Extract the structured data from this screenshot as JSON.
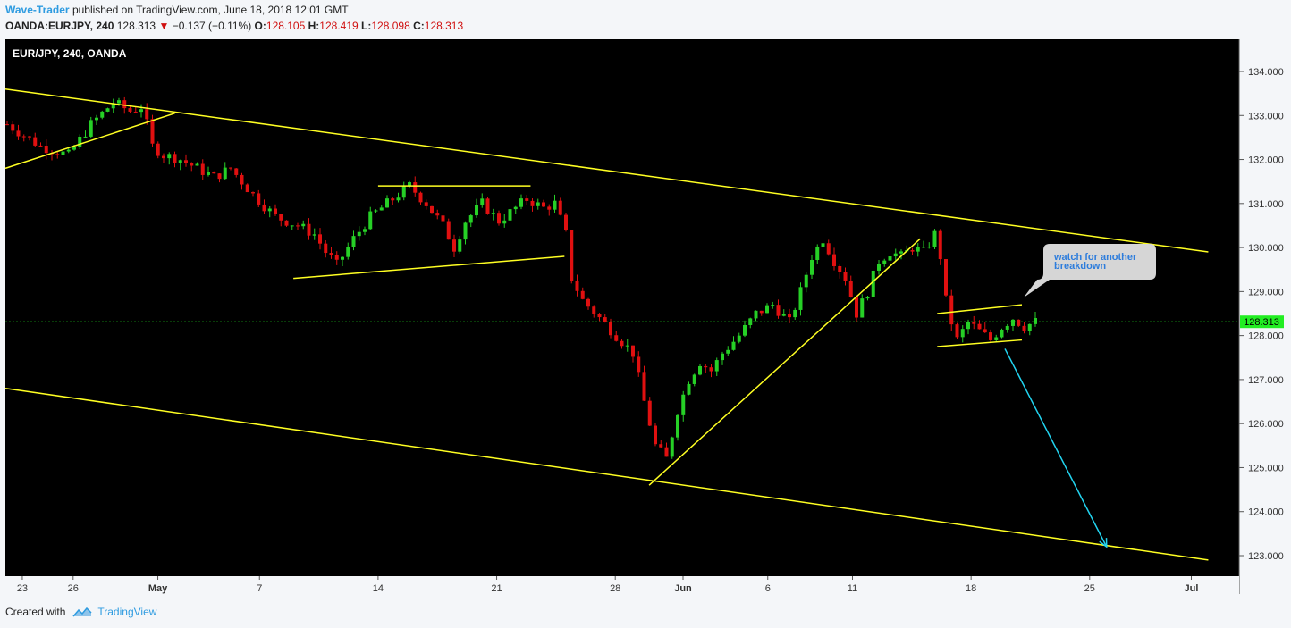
{
  "header": {
    "author": "Wave-Trader",
    "published_text": "published on TradingView.com, June 18, 2018 12:01 GMT",
    "symbol": "OANDA:EURJPY, 240",
    "last": "128.313",
    "change": "−0.137 (−0.11%)",
    "o_label": "O:",
    "o_value": "128.105",
    "h_label": "H:",
    "h_value": "128.419",
    "l_label": "L:",
    "l_value": "128.098",
    "c_label": "C:",
    "c_value": "128.313"
  },
  "footer": {
    "created_with": "Created with",
    "brand": "TradingView"
  },
  "colors": {
    "up": "#26d026",
    "down": "#e01010",
    "trendline": "#ffff22",
    "arrow": "#22d4f0",
    "background": "#000000",
    "price_tag": "#22ee22"
  },
  "chart_data": {
    "type": "candlestick",
    "title": "EUR/JPY, 240, OANDA",
    "ylim": [
      122.5,
      134.6
    ],
    "y_ticks": [
      "123.000",
      "124.000",
      "125.000",
      "126.000",
      "127.000",
      "128.000",
      "129.000",
      "130.000",
      "131.000",
      "132.000",
      "133.000",
      "134.000"
    ],
    "x_ticks": [
      "23",
      "26",
      "May",
      "7",
      "14",
      "21",
      "28",
      "Jun",
      "6",
      "11",
      "18",
      "25",
      "Jul"
    ],
    "current_price": "128.313",
    "annotation": {
      "line1": "watch for another",
      "line2": "breakdown"
    },
    "close_path": [
      [
        0,
        132.8
      ],
      [
        6,
        132.3
      ],
      [
        11,
        132.1
      ],
      [
        15,
        132.8
      ],
      [
        19,
        133.3
      ],
      [
        22,
        133.1
      ],
      [
        24,
        133.2
      ],
      [
        25,
        132.8
      ],
      [
        26,
        132.3
      ],
      [
        28,
        132.1
      ],
      [
        31,
        132.0
      ],
      [
        34,
        131.8
      ],
      [
        37,
        131.6
      ],
      [
        40,
        131.8
      ],
      [
        44,
        131.2
      ],
      [
        48,
        130.7
      ],
      [
        52,
        130.5
      ],
      [
        55,
        130.3
      ],
      [
        57,
        129.9
      ],
      [
        59,
        129.6
      ],
      [
        62,
        130.2
      ],
      [
        65,
        130.7
      ],
      [
        68,
        131.0
      ],
      [
        72,
        131.4
      ],
      [
        75,
        131.0
      ],
      [
        78,
        130.5
      ],
      [
        80,
        130.0
      ],
      [
        82,
        130.6
      ],
      [
        85,
        131.0
      ],
      [
        88,
        130.6
      ],
      [
        91,
        130.9
      ],
      [
        93,
        131.1
      ],
      [
        96,
        130.9
      ],
      [
        98,
        131.0
      ],
      [
        100,
        130.3
      ],
      [
        101,
        129.3
      ],
      [
        103,
        128.8
      ],
      [
        106,
        128.4
      ],
      [
        109,
        128.0
      ],
      [
        112,
        127.6
      ],
      [
        114,
        126.5
      ],
      [
        116,
        125.5
      ],
      [
        118,
        125.2
      ],
      [
        120,
        126.3
      ],
      [
        122,
        127.0
      ],
      [
        124,
        127.4
      ],
      [
        126,
        127.2
      ],
      [
        128,
        127.6
      ],
      [
        131,
        128.0
      ],
      [
        134,
        128.5
      ],
      [
        137,
        128.7
      ],
      [
        140,
        128.3
      ],
      [
        142,
        129.0
      ],
      [
        144,
        129.8
      ],
      [
        146,
        130.2
      ],
      [
        148,
        129.7
      ],
      [
        150,
        129.3
      ],
      [
        152,
        128.5
      ],
      [
        154,
        129.0
      ],
      [
        156,
        129.7
      ],
      [
        158,
        129.9
      ],
      [
        160,
        129.8
      ],
      [
        162,
        130.0
      ],
      [
        164,
        129.9
      ],
      [
        166,
        130.3
      ],
      [
        167,
        129.8
      ],
      [
        168,
        128.8
      ],
      [
        169,
        128.3
      ],
      [
        170,
        127.9
      ],
      [
        172,
        128.3
      ],
      [
        174,
        128.1
      ],
      [
        176,
        127.9
      ],
      [
        178,
        128.2
      ],
      [
        180,
        128.4
      ],
      [
        182,
        128.2
      ],
      [
        184,
        128.313
      ]
    ],
    "trendlines": [
      {
        "from": [
          "22-Apr",
          133.6
        ],
        "to": [
          "2-Jul",
          129.9
        ]
      },
      {
        "from": [
          "22-Apr",
          126.8
        ],
        "to": [
          "2-Jul",
          122.9
        ]
      },
      {
        "from": [
          "22-Apr",
          131.8
        ],
        "to": [
          "2-May",
          133.05
        ]
      },
      {
        "from": [
          "14-May",
          131.4
        ],
        "to": [
          "23-May",
          131.4
        ]
      },
      {
        "from": [
          "9-May",
          129.3
        ],
        "to": [
          "25-May",
          129.8
        ]
      },
      {
        "from": [
          "30-May",
          124.6
        ],
        "to": [
          "15-Jun",
          130.2
        ]
      },
      {
        "from": [
          "16-Jun",
          128.5
        ],
        "to": [
          "21-Jun",
          128.7
        ]
      },
      {
        "from": [
          "16-Jun",
          127.75
        ],
        "to": [
          "21-Jun",
          127.9
        ]
      }
    ],
    "projection_arrow": {
      "from": [
        "20-Jun",
        127.7
      ],
      "to": [
        "26-Jun",
        123.2
      ]
    }
  }
}
